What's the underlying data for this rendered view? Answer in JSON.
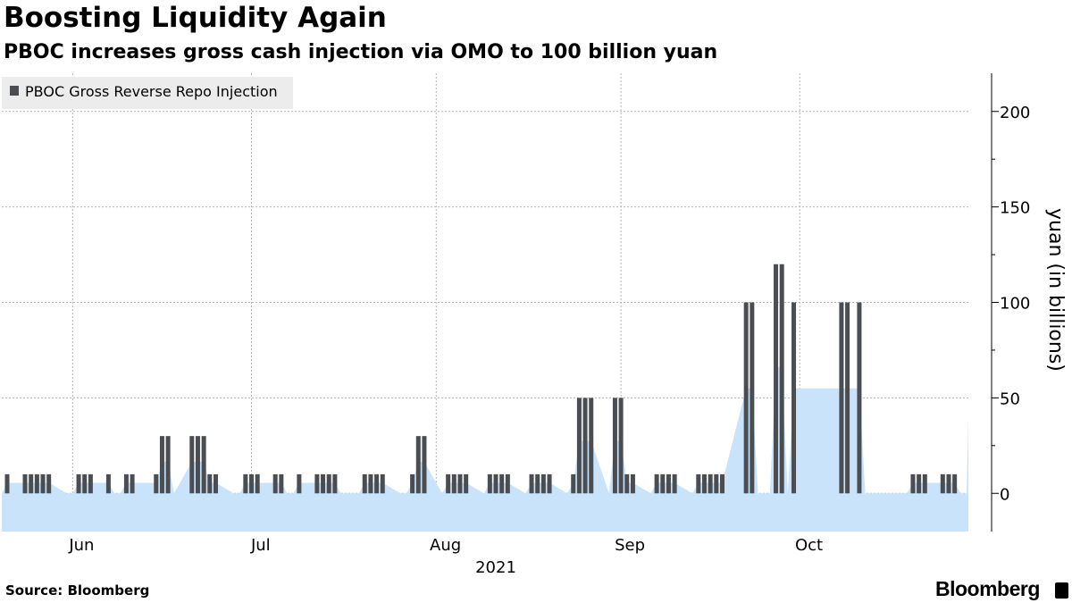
{
  "title": "Boosting Liquidity Again",
  "subtitle": "PBOC increases gross cash injection via OMO to 100 billion yuan",
  "source": "Source: Bloomberg",
  "brand": "Bloomberg",
  "colors": {
    "bar": "#4a4d52",
    "area": "#c9e3fb",
    "grid": "#b5b5b5",
    "legend_bg": "#ececec"
  },
  "chart_data": {
    "type": "bar",
    "legend_position": "top-left",
    "grid": true,
    "ylabel": "yuan (in billions)",
    "ylim": [
      -20,
      220
    ],
    "yticks": [
      0,
      50,
      100,
      150,
      200
    ],
    "xlim": [
      "2021-05-21",
      "2021-10-29"
    ],
    "month_ticks": [
      {
        "label": "Jun",
        "date": "2021-06-01"
      },
      {
        "label": "Jul",
        "date": "2021-07-01"
      },
      {
        "label": "Aug",
        "date": "2021-08-01"
      },
      {
        "label": "Sep",
        "date": "2021-09-01"
      },
      {
        "label": "Oct",
        "date": "2021-10-01"
      }
    ],
    "year_label": "2021",
    "series": [
      {
        "name": "PBOC Gross Reverse Repo Injection",
        "x": [
          "2021-05-21",
          "2021-05-24",
          "2021-05-25",
          "2021-05-26",
          "2021-05-27",
          "2021-05-28",
          "2021-05-31",
          "2021-06-01",
          "2021-06-02",
          "2021-06-03",
          "2021-06-04",
          "2021-06-07",
          "2021-06-08",
          "2021-06-09",
          "2021-06-10",
          "2021-06-11",
          "2021-06-15",
          "2021-06-16",
          "2021-06-17",
          "2021-06-18",
          "2021-06-21",
          "2021-06-22",
          "2021-06-23",
          "2021-06-24",
          "2021-06-25",
          "2021-06-28",
          "2021-06-29",
          "2021-06-30",
          "2021-07-01",
          "2021-07-02",
          "2021-07-05",
          "2021-07-06",
          "2021-07-07",
          "2021-07-08",
          "2021-07-09",
          "2021-07-12",
          "2021-07-13",
          "2021-07-14",
          "2021-07-15",
          "2021-07-16",
          "2021-07-19",
          "2021-07-20",
          "2021-07-21",
          "2021-07-22",
          "2021-07-23",
          "2021-07-26",
          "2021-07-27",
          "2021-07-28",
          "2021-07-29",
          "2021-07-30",
          "2021-08-02",
          "2021-08-03",
          "2021-08-04",
          "2021-08-05",
          "2021-08-06",
          "2021-08-09",
          "2021-08-10",
          "2021-08-11",
          "2021-08-12",
          "2021-08-13",
          "2021-08-16",
          "2021-08-17",
          "2021-08-18",
          "2021-08-19",
          "2021-08-20",
          "2021-08-23",
          "2021-08-24",
          "2021-08-25",
          "2021-08-26",
          "2021-08-27",
          "2021-08-30",
          "2021-08-31",
          "2021-09-01",
          "2021-09-02",
          "2021-09-03",
          "2021-09-06",
          "2021-09-07",
          "2021-09-08",
          "2021-09-09",
          "2021-09-10",
          "2021-09-13",
          "2021-09-14",
          "2021-09-15",
          "2021-09-16",
          "2021-09-17",
          "2021-09-18",
          "2021-09-22",
          "2021-09-23",
          "2021-09-24",
          "2021-09-26",
          "2021-09-27",
          "2021-09-28",
          "2021-09-29",
          "2021-09-30",
          "2021-10-08",
          "2021-10-09",
          "2021-10-11",
          "2021-10-12",
          "2021-10-13",
          "2021-10-14",
          "2021-10-15",
          "2021-10-18",
          "2021-10-19",
          "2021-10-20",
          "2021-10-21",
          "2021-10-22",
          "2021-10-25",
          "2021-10-26",
          "2021-10-27",
          "2021-10-28",
          "2021-10-29"
        ],
        "values": [
          10,
          10,
          10,
          10,
          10,
          10,
          0,
          0,
          10,
          10,
          10,
          10,
          0,
          0,
          10,
          10,
          10,
          30,
          30,
          0,
          30,
          30,
          30,
          10,
          10,
          0,
          0,
          10,
          10,
          10,
          10,
          10,
          0,
          0,
          10,
          10,
          10,
          10,
          10,
          0,
          0,
          10,
          10,
          10,
          10,
          0,
          0,
          10,
          30,
          30,
          0,
          10,
          10,
          10,
          10,
          0,
          10,
          10,
          10,
          10,
          0,
          10,
          10,
          10,
          10,
          0,
          10,
          50,
          50,
          50,
          0,
          50,
          50,
          10,
          10,
          0,
          10,
          10,
          10,
          10,
          0,
          10,
          10,
          10,
          10,
          10,
          100,
          100,
          0,
          0,
          120,
          120,
          0,
          100,
          100,
          100,
          100,
          0,
          0,
          0,
          0,
          0,
          0,
          10,
          10,
          10,
          10,
          10,
          10,
          0,
          0
        ]
      }
    ]
  }
}
